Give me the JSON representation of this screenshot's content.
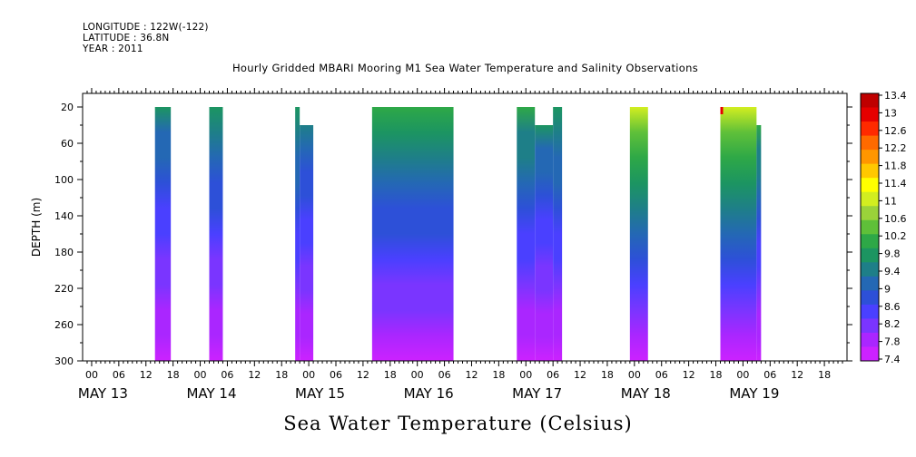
{
  "header": {
    "longitude": "LONGITUDE : 122W(-122)",
    "latitude": "LATITUDE : 36.8N",
    "year": "YEAR : 2011"
  },
  "chart_data": {
    "type": "heatmap",
    "title": "Hourly Gridded MBARI Mooring M1 Sea Water Temperature and Salinity Observations",
    "bottom_title": "Sea Water Temperature (Celsius)",
    "ylabel": "DEPTH (m)",
    "xlabel": "",
    "y_ticks": [
      "20",
      "60",
      "100",
      "140",
      "180",
      "220",
      "260",
      "300"
    ],
    "ylim": [
      300,
      5
    ],
    "xlim_hours": [
      -2,
      167
    ],
    "x_hour_ticks": [
      "00",
      "06",
      "12",
      "18"
    ],
    "x_day_labels": [
      "MAY 13",
      "MAY 14",
      "MAY 15",
      "MAY 16",
      "MAY 17",
      "MAY 18",
      "MAY 19"
    ],
    "colorbar": {
      "levels": [
        "13.4",
        "13",
        "12.6",
        "12.2",
        "11.8",
        "11.4",
        "11",
        "10.6",
        "10.2",
        "9.8",
        "9.4",
        "9",
        "8.6",
        "8.2",
        "7.8",
        "7.4"
      ],
      "colors": [
        "#bf0000",
        "#e60000",
        "#ff2a00",
        "#ff6a00",
        "#ff9600",
        "#ffc800",
        "#ffff00",
        "#d2ee20",
        "#9ad23a",
        "#5fc039",
        "#2ea847",
        "#1c9561",
        "#1e7f88",
        "#2468b4",
        "#2d50d8",
        "#4a40ff",
        "#7a35ff",
        "#aa26ff",
        "#cc22ff"
      ]
    },
    "data_segments": [
      {
        "start_hour": 14,
        "end_hour": 17.5,
        "top_depth": 20,
        "surface_temp": 9.6
      },
      {
        "start_hour": 26,
        "end_hour": 29,
        "top_depth": 20,
        "surface_temp": 9.7
      },
      {
        "start_hour": 45,
        "end_hour": 46,
        "top_depth": 20,
        "surface_temp": 9.9
      },
      {
        "start_hour": 46,
        "end_hour": 49,
        "top_depth": 40,
        "surface_temp": 9.4
      },
      {
        "start_hour": 62,
        "end_hour": 80,
        "top_depth": 20,
        "surface_temp": 10.2
      },
      {
        "start_hour": 94,
        "end_hour": 98,
        "top_depth": 20,
        "surface_temp": 10.0
      },
      {
        "start_hour": 98,
        "end_hour": 102,
        "top_depth": 40,
        "surface_temp": 9.6
      },
      {
        "start_hour": 102,
        "end_hour": 104,
        "top_depth": 20,
        "surface_temp": 9.9
      },
      {
        "start_hour": 119,
        "end_hour": 123,
        "top_depth": 20,
        "surface_temp": 11.2
      },
      {
        "start_hour": 139,
        "end_hour": 147,
        "top_depth": 20,
        "surface_temp": 11.2
      },
      {
        "start_hour": 147,
        "end_hour": 148,
        "top_depth": 40,
        "surface_temp": 10.0
      }
    ],
    "notes": "Gaps (white) indicate no data. Temperature decreases with depth from ~10-11 C near surface to ~7.4 C at 300 m. Small red patch near surface at start of May 18 18h segment (~13 C)."
  }
}
